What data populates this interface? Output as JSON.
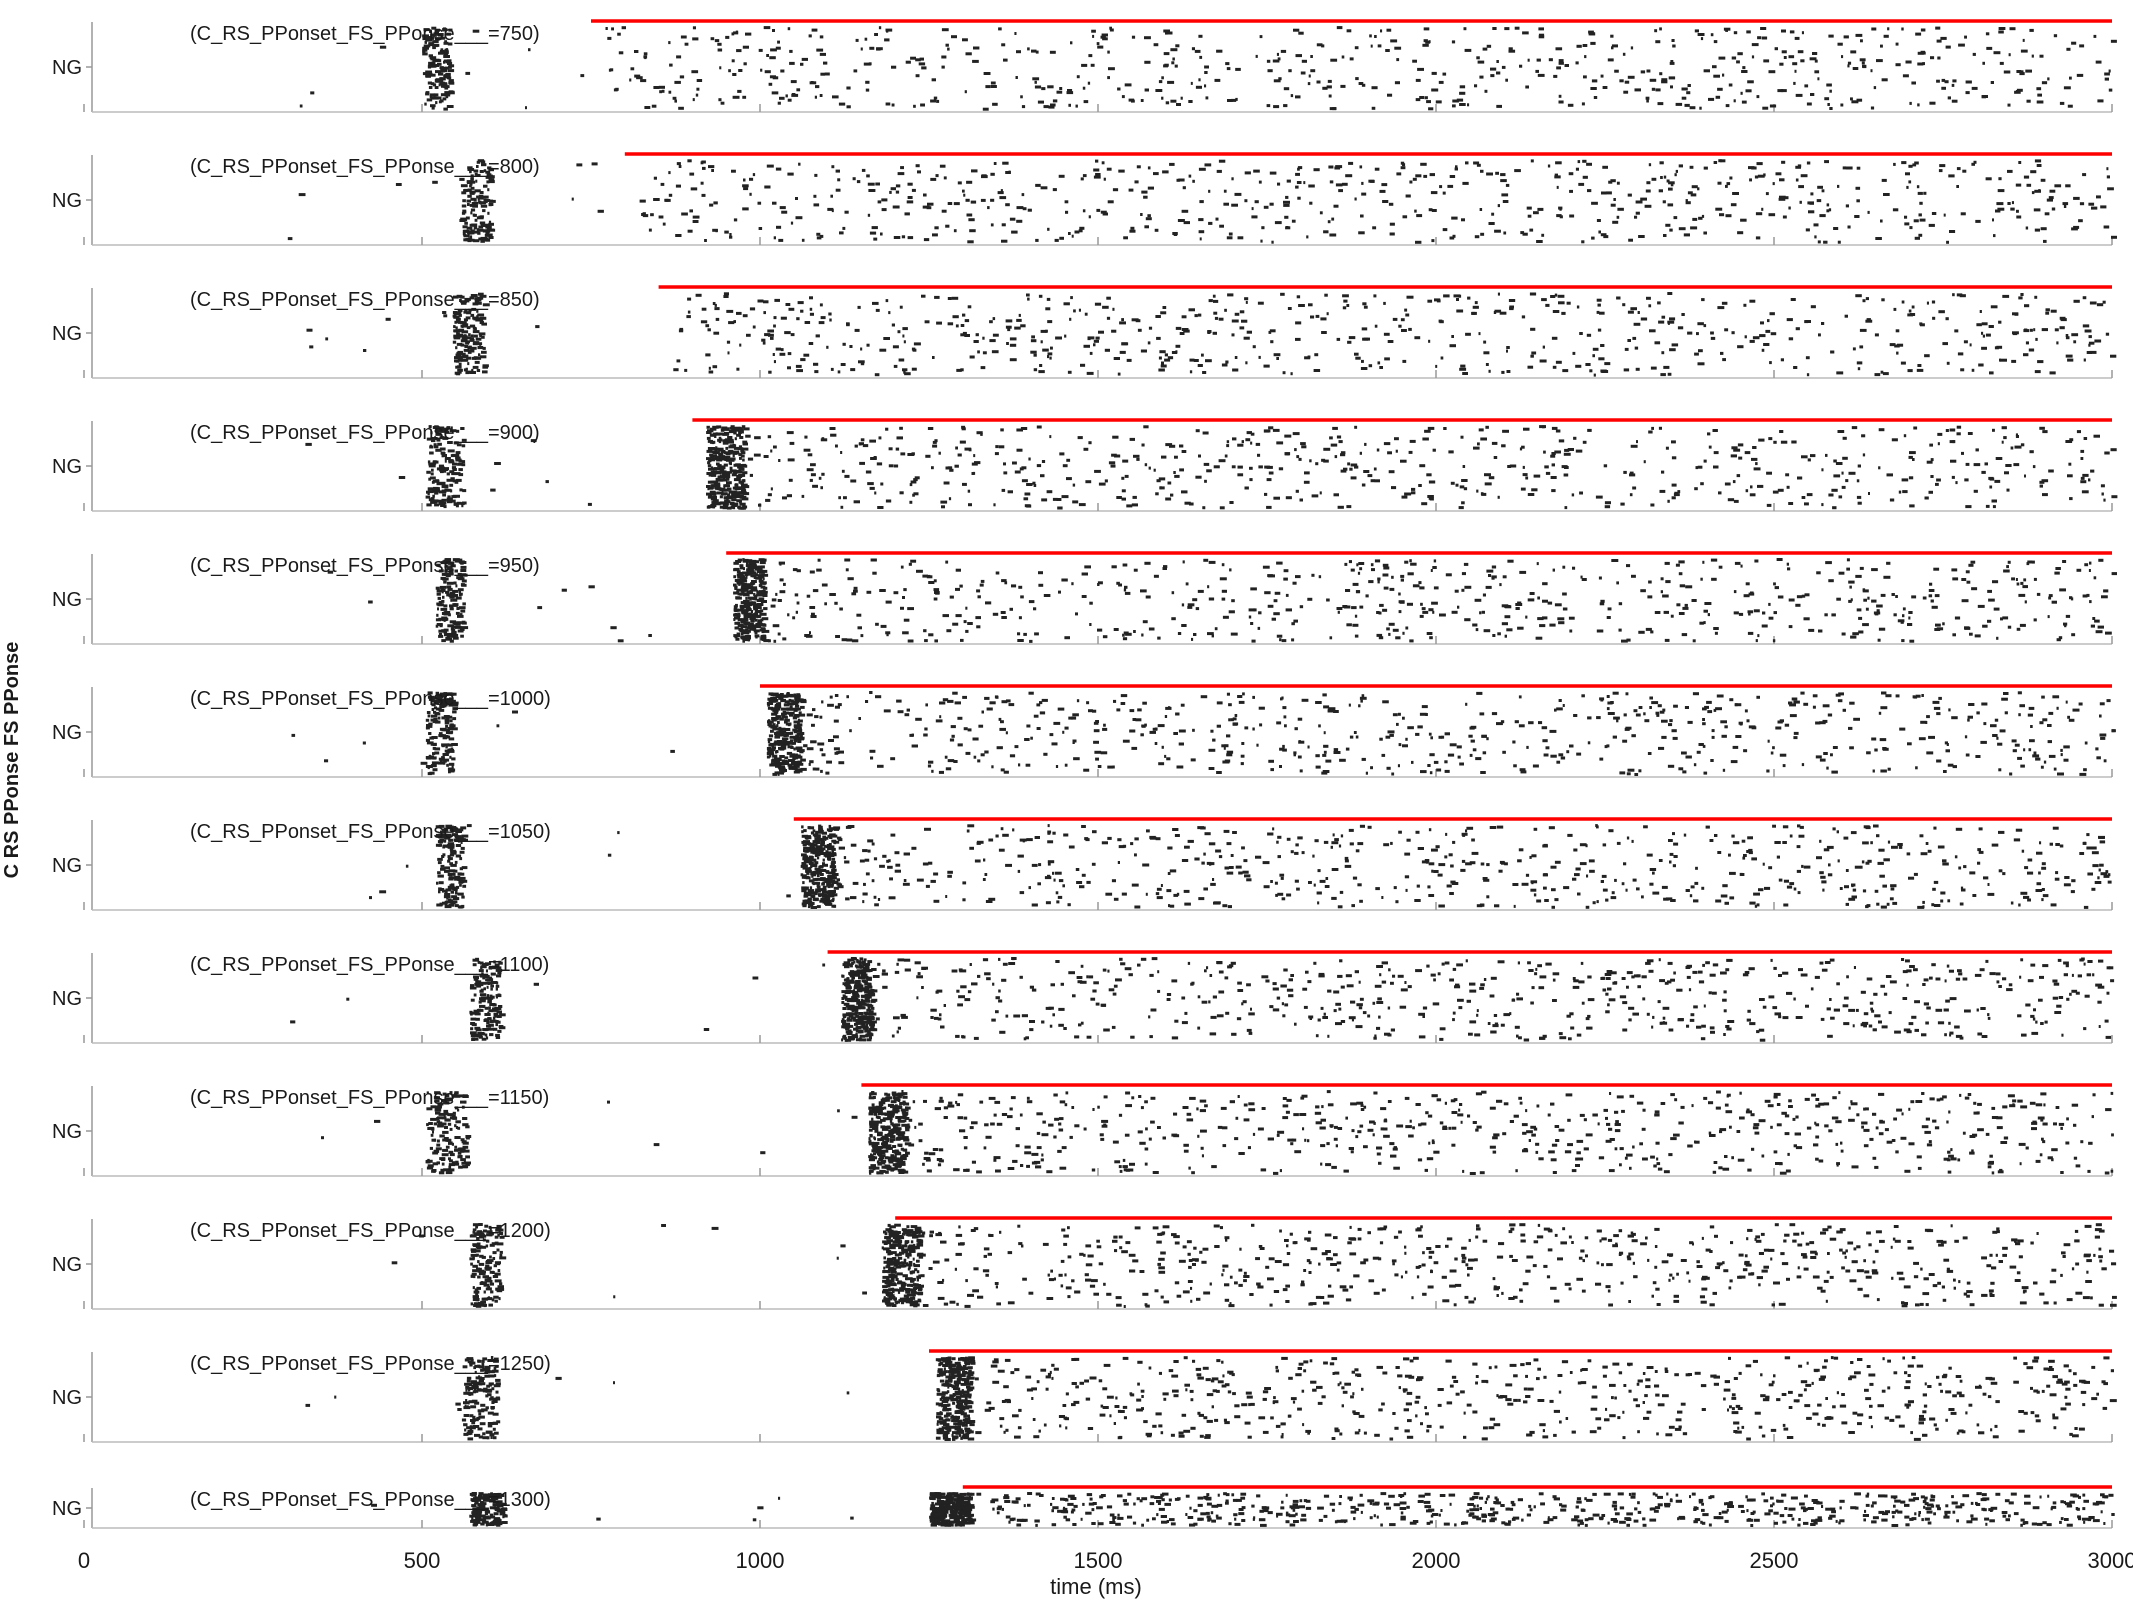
{
  "figure": {
    "ylabel": "C RS PPonse FS PPonse",
    "row_label": "NG"
  },
  "chart_data": {
    "type": "scatter",
    "subtype": "raster",
    "xlabel": "time (ms)",
    "xlim": [
      0,
      3000
    ],
    "xticks": [
      "0",
      "500",
      "1000",
      "1500",
      "2000",
      "2500",
      "3000"
    ],
    "panel_prefix": "(C_RS_PPonset_FS_PPonse___",
    "marker_color": "#ff0000",
    "spike_color": "#222222",
    "panels": [
      {
        "label": "(C_RS_PPonset_FS_PPonse___=750)",
        "onset": 750,
        "early_burst": [
          500,
          540
        ],
        "onset_burst": null
      },
      {
        "label": "(C_RS_PPonset_FS_PPonse___=800)",
        "onset": 800,
        "early_burst": [
          555,
          600
        ],
        "onset_burst": null
      },
      {
        "label": "(C_RS_PPonset_FS_PPonse___=850)",
        "onset": 850,
        "early_burst": [
          545,
          590
        ],
        "onset_burst": null
      },
      {
        "label": "(C_RS_PPonset_FS_PPonse___=900)",
        "onset": 900,
        "early_burst": [
          505,
          560
        ],
        "onset_burst": [
          920,
          975
        ]
      },
      {
        "label": "(C_RS_PPonset_FS_PPonse___=950)",
        "onset": 950,
        "early_burst": [
          520,
          560
        ],
        "onset_burst": [
          960,
          1005
        ]
      },
      {
        "label": "(C_RS_PPonset_FS_PPonse___=1000)",
        "onset": 1000,
        "early_burst": [
          505,
          545
        ],
        "onset_burst": [
          1010,
          1060
        ]
      },
      {
        "label": "(C_RS_PPonset_FS_PPonse___=1050)",
        "onset": 1050,
        "early_burst": [
          520,
          560
        ],
        "onset_burst": [
          1060,
          1110
        ]
      },
      {
        "label": "(C_RS_PPonset_FS_PPonse___=1100)",
        "onset": 1100,
        "early_burst": [
          570,
          615
        ],
        "onset_burst": [
          1120,
          1165
        ]
      },
      {
        "label": "(C_RS_PPonset_FS_PPonse___=1150)",
        "onset": 1150,
        "early_burst": [
          505,
          565
        ],
        "onset_burst": [
          1160,
          1215
        ]
      },
      {
        "label": "(C_RS_PPonset_FS_PPonse___=1200)",
        "onset": 1200,
        "early_burst": [
          570,
          615
        ],
        "onset_burst": [
          1180,
          1235
        ]
      },
      {
        "label": "(C_RS_PPonset_FS_PPonse___=1250)",
        "onset": 1250,
        "early_burst": [
          560,
          610
        ],
        "onset_burst": [
          1260,
          1310
        ]
      },
      {
        "label": "(C_RS_PPonset_FS_PPonse___=1300)",
        "onset": 1300,
        "early_burst": [
          570,
          620
        ],
        "onset_burst": [
          1250,
          1310
        ]
      }
    ]
  }
}
